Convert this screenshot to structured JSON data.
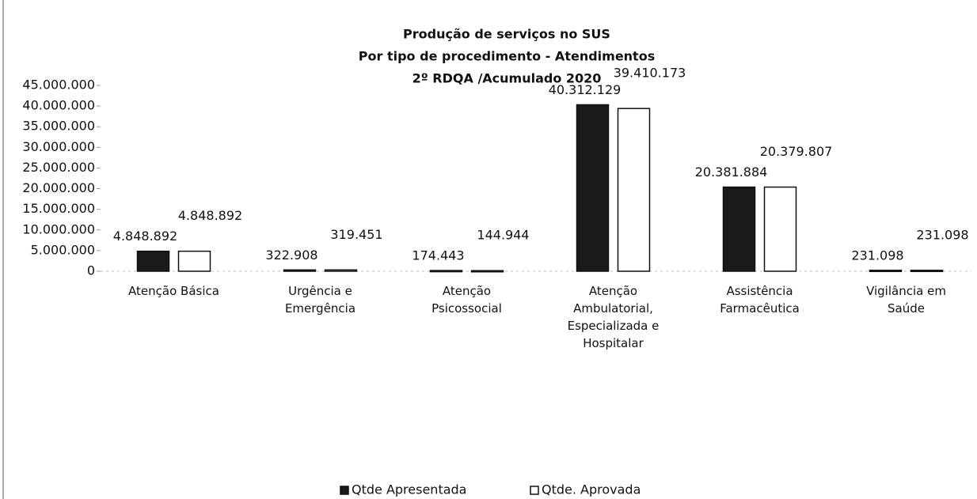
{
  "chart_data": {
    "type": "bar",
    "title": [
      "Produção de serviços no SUS",
      "Por tipo de procedimento - Atendimentos",
      "2º RDQA /Acumulado 2020"
    ],
    "categories": [
      "Atenção Básica",
      "Urgência e Emergência",
      "Atenção Psicossocial",
      "Atenção Ambulatorial, Especializada e Hospitalar",
      "Assistência Farmacêutica",
      "Vigilância em Saúde"
    ],
    "series": [
      {
        "name": "Qtde Apresentada",
        "color": "#1a1a1a",
        "values": [
          4848892,
          322908,
          174443,
          40312129,
          20381884,
          231098
        ],
        "value_labels": [
          "4.848.892",
          "322.908",
          "174.443",
          "40.312.129",
          "20.381.884",
          "231.098"
        ]
      },
      {
        "name": "Qtde. Aprovada",
        "color": "#ffffff",
        "values": [
          4848892,
          319451,
          144944,
          39410173,
          20379807,
          231098
        ],
        "value_labels": [
          "4.848.892",
          "319.451",
          "144.944",
          "39.410.173",
          "20.379.807",
          "231.098"
        ]
      }
    ],
    "ylim": [
      0,
      45000000
    ],
    "yticks": [
      0,
      {
        "value": 5000000,
        "label": "5.000.000"
      },
      {
        "value": 10000000,
        "label": "10.000.000"
      },
      {
        "value": 15000000,
        "label": "15.000.000"
      },
      {
        "value": 20000000,
        "label": "20.000.000"
      },
      {
        "value": 25000000,
        "label": "25.000.000"
      },
      {
        "value": 30000000,
        "label": "30.000.000"
      },
      {
        "value": 35000000,
        "label": "35.000.000"
      },
      {
        "value": 40000000,
        "label": "40.000.000"
      },
      {
        "value": 45000000,
        "label": "45.000.000"
      }
    ],
    "grid": false,
    "legend": "bottom"
  }
}
